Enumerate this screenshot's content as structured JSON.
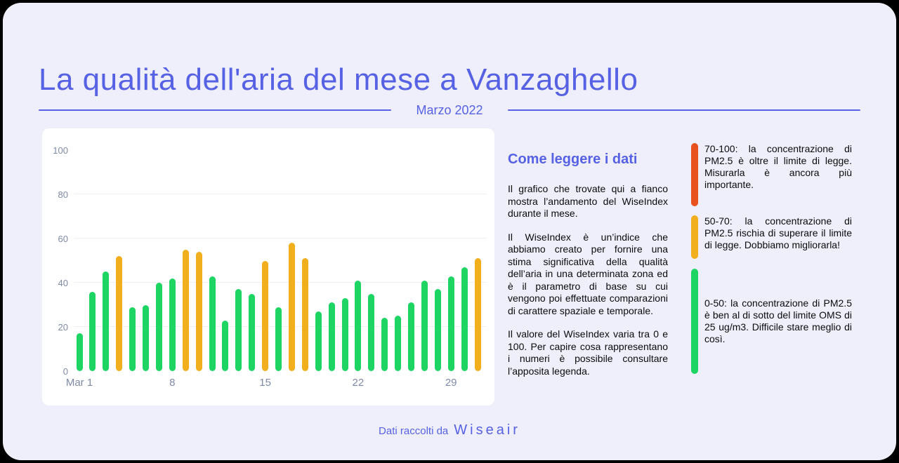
{
  "colors": {
    "background": "#EFEFFB",
    "frame": "#000000",
    "accent": "#5661E3",
    "panel": "#FFFFFF",
    "axis_label": "#7E8AA6",
    "gridline": "#F0F0F3",
    "text": "#0B0B0C",
    "green": "#1ED564",
    "amber": "#F1AF1E",
    "red": "#E8521C"
  },
  "header": {
    "title": "La qualità dell'aria del mese a Vanzaghello",
    "subtitle": "Marzo 2022"
  },
  "chart_data": {
    "type": "bar",
    "title": "",
    "xlabel": "",
    "ylabel": "",
    "x_unit": "giorno (Marzo 2022)",
    "categories": [
      "Mar 1",
      "Mar 2",
      "Mar 3",
      "Mar 4",
      "Mar 5",
      "Mar 6",
      "Mar 7",
      "Mar 8",
      "Mar 9",
      "Mar 10",
      "Mar 11",
      "Mar 12",
      "Mar 13",
      "Mar 14",
      "Mar 15",
      "Mar 16",
      "Mar 17",
      "Mar 18",
      "Mar 19",
      "Mar 20",
      "Mar 21",
      "Mar 22",
      "Mar 23",
      "Mar 24",
      "Mar 25",
      "Mar 26",
      "Mar 27",
      "Mar 28",
      "Mar 29",
      "Mar 30",
      "Mar 31"
    ],
    "values": [
      17,
      36,
      45,
      52,
      29,
      30,
      40,
      42,
      55,
      54,
      43,
      23,
      37,
      35,
      50,
      29,
      58,
      51,
      27,
      31,
      33,
      41,
      35,
      24,
      25,
      31,
      41,
      37,
      43,
      47,
      51
    ],
    "ylim": [
      0,
      100
    ],
    "yticks": [
      0,
      20,
      40,
      60,
      80,
      100
    ],
    "gridlines": [
      20,
      40,
      60,
      80
    ],
    "xticks": [
      {
        "index": 0,
        "label": "Mar 1"
      },
      {
        "index": 7,
        "label": "8"
      },
      {
        "index": 14,
        "label": "15"
      },
      {
        "index": 21,
        "label": "22"
      },
      {
        "index": 28,
        "label": "29"
      }
    ],
    "color_rule": [
      {
        "min": 0,
        "max": 50,
        "color_key": "green"
      },
      {
        "min": 50,
        "max": 70,
        "color_key": "amber"
      },
      {
        "min": 70,
        "max": 100,
        "color_key": "red"
      }
    ],
    "legend_position": "right",
    "grid": true
  },
  "explainer": {
    "heading": "Come leggere i dati",
    "paragraphs": [
      "Il grafico che trovate qui a fianco mostra l’andamento del WiseIndex durante il mese.",
      "Il WiseIndex è un’indice che abbiamo creato per fornire una stima significativa della qualità dell’aria in una determinata zona ed è il parametro di base su cui vengono poi effettuate comparazioni di carattere spaziale e temporale.",
      "Il valore del WiseIndex varia tra 0 e 100. Per capire cosa rappresentano i numeri è possibile consultare l’apposita legenda."
    ]
  },
  "legend": {
    "items": [
      {
        "range": "70-100",
        "color_key": "red",
        "text": "70-100: la concentrazione di PM2.5 è oltre il limite di legge. Misurarla è ancora più importante."
      },
      {
        "range": "50-70",
        "color_key": "amber",
        "text": "50-70: la concentrazione di PM2.5 rischia di superare il limite di legge. Dobbiamo migliorarla!"
      },
      {
        "range": "0-50",
        "color_key": "green",
        "text": "0-50: la concentrazione di PM2.5 è ben al di sotto del limite OMS di 25 ug/m3. Difficile stare meglio di così."
      }
    ]
  },
  "footer": {
    "prefix": "Dati raccolti da",
    "brand": "Wiseair"
  }
}
